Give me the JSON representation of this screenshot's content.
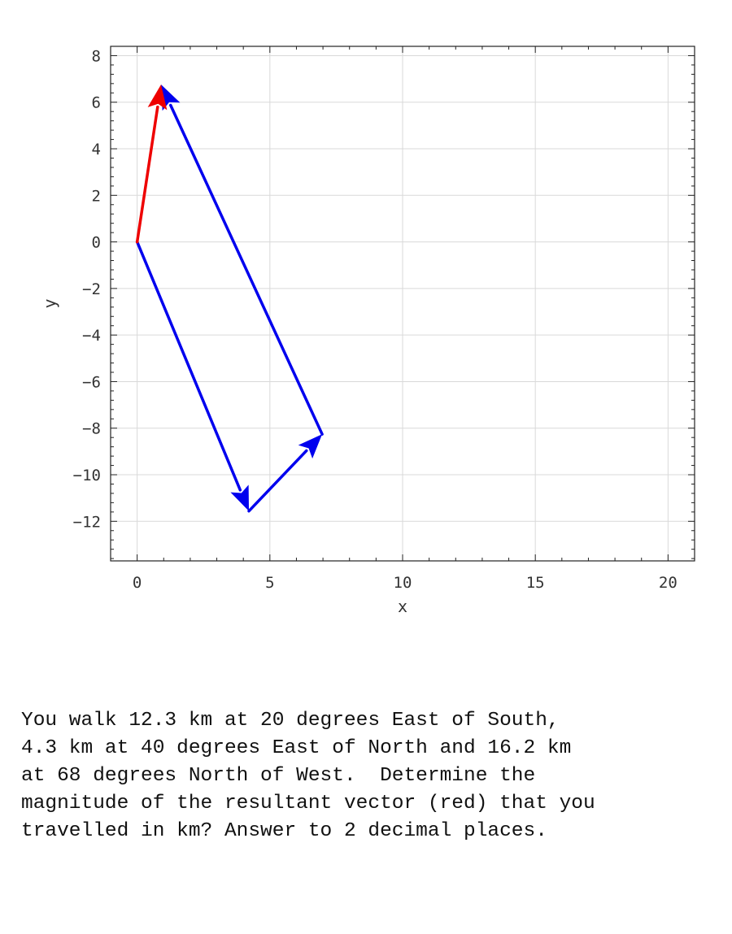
{
  "chart_data": {
    "type": "line",
    "title": "",
    "xlabel": "x",
    "ylabel": "y",
    "xlim": [
      -1,
      21
    ],
    "ylim": [
      -13.7,
      8.4
    ],
    "xticks": [
      0,
      5,
      10,
      15,
      20
    ],
    "yticks": [
      8,
      6,
      4,
      2,
      0,
      -2,
      -4,
      -6,
      -8,
      -10,
      -12
    ],
    "grid": true,
    "series": [
      {
        "color": "#0000ee",
        "x": [
          0,
          4.21
        ],
        "y": [
          0,
          -11.56
        ],
        "arrow": true
      },
      {
        "color": "#0000ee",
        "x": [
          4.21,
          6.97
        ],
        "y": [
          -11.56,
          -8.26
        ],
        "arrow": true
      },
      {
        "color": "#0000ee",
        "x": [
          6.97,
          0.9
        ],
        "y": [
          -8.26,
          6.76
        ],
        "arrow": true
      },
      {
        "color": "#ee0000",
        "x": [
          0,
          0.9
        ],
        "y": [
          0,
          6.76
        ],
        "arrow": true
      }
    ]
  },
  "problem": {
    "lines": [
      "You walk 12.3 km at 20 degrees East of South,",
      "4.3 km at 40 degrees East of North and 16.2 km",
      "at 68 degrees North of West.  Determine the",
      "magnitude of the resultant vector (red) that you",
      "travelled in km? Answer to 2 decimal places."
    ]
  }
}
